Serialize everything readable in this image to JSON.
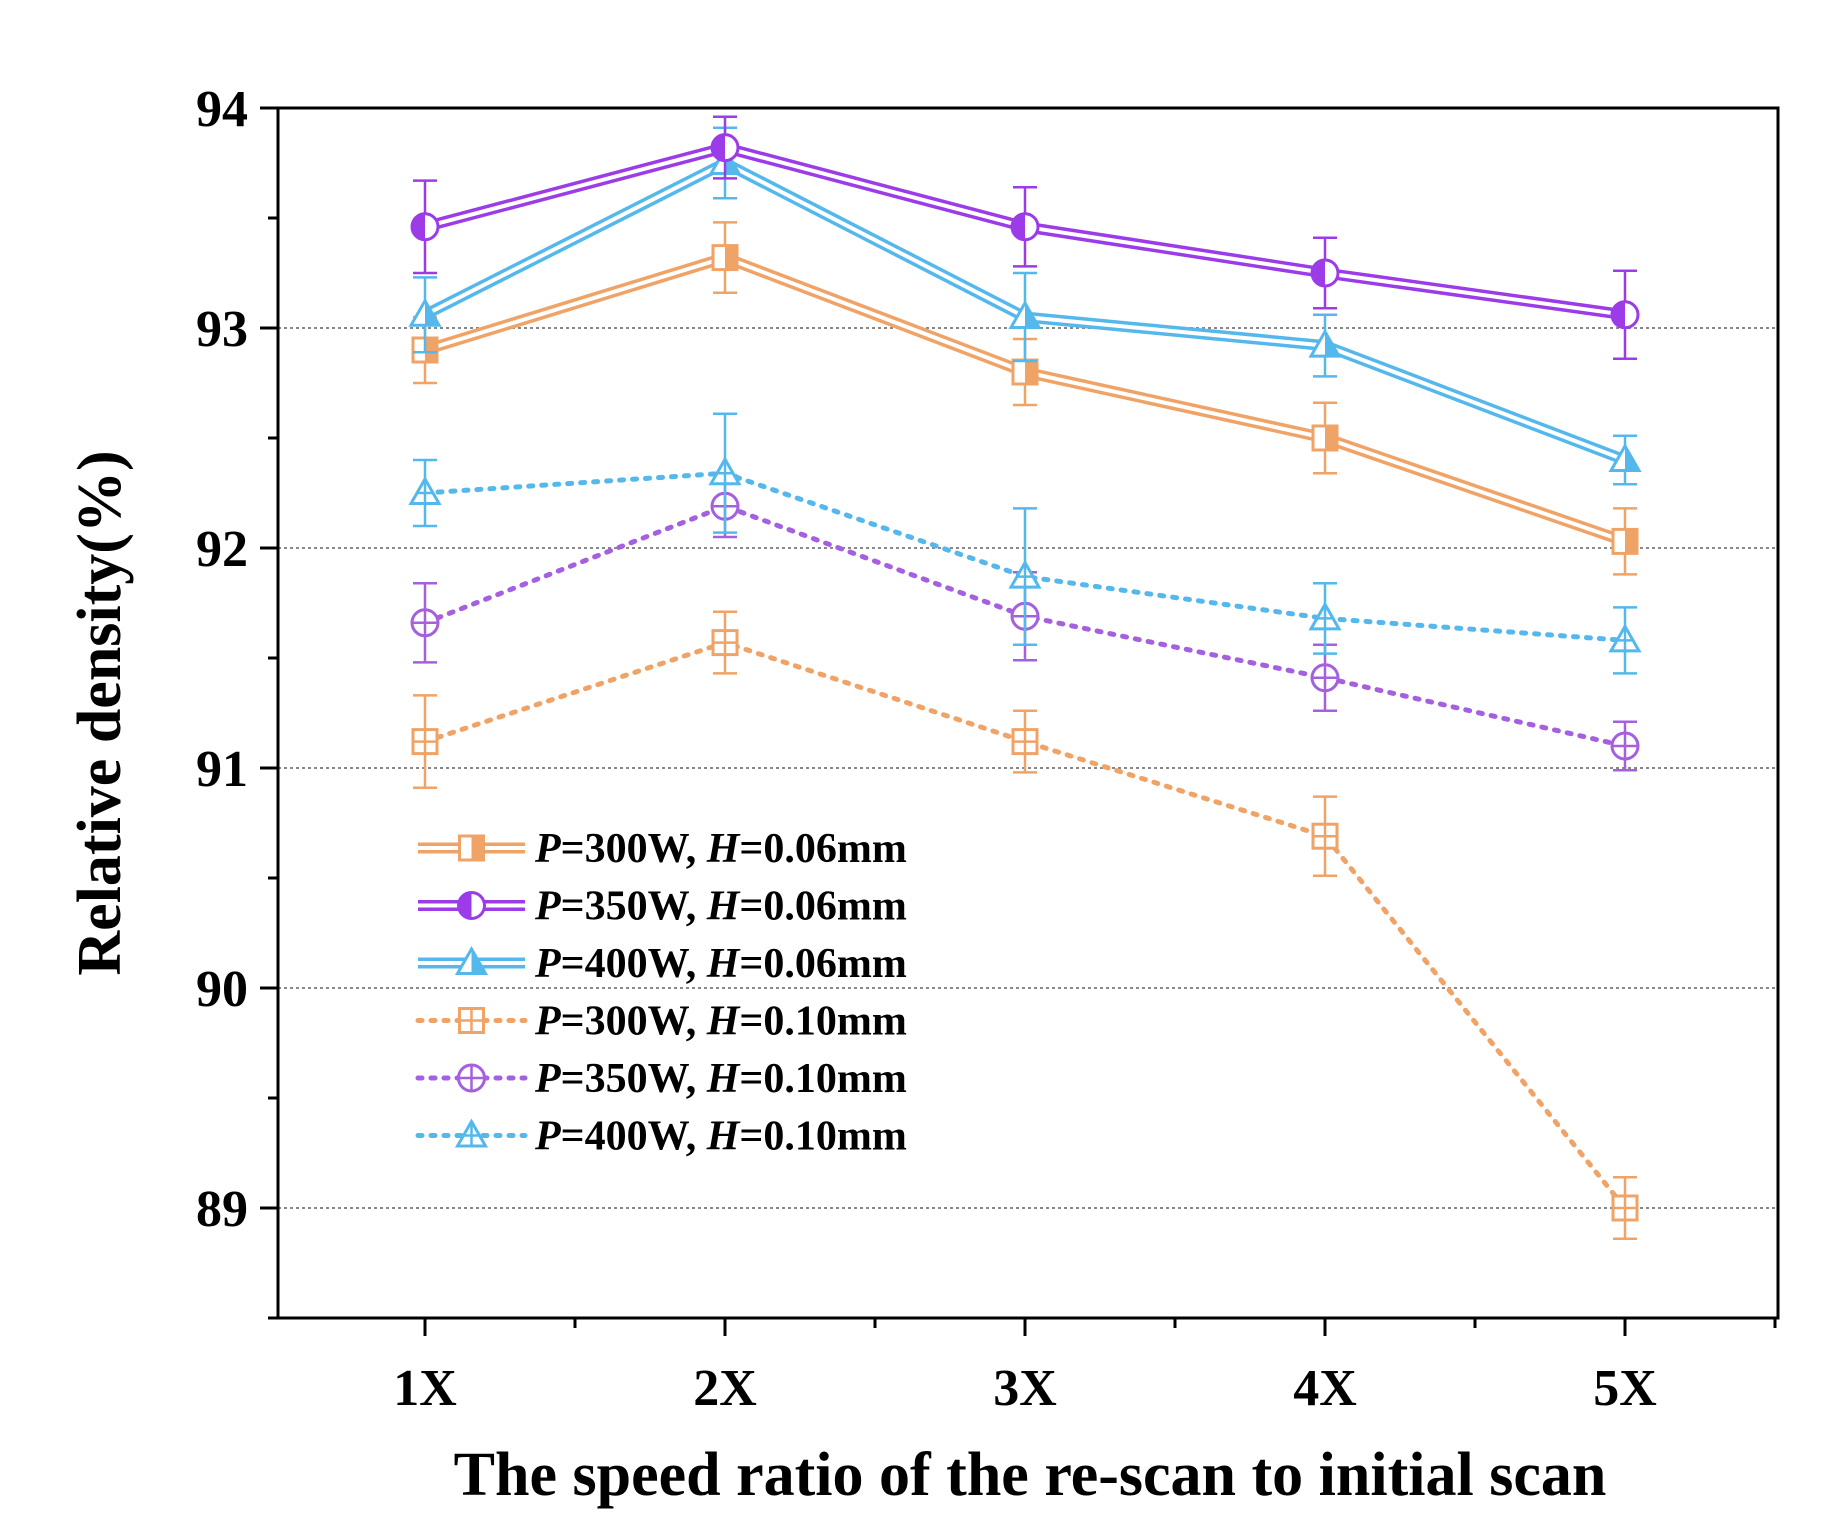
{
  "chart_data": {
    "type": "line",
    "title": "",
    "xlabel": "The speed ratio of the re-scan to initial scan",
    "ylabel": "Relative density(%)",
    "categories": [
      "1X",
      "2X",
      "3X",
      "4X",
      "5X"
    ],
    "ylim": [
      88.5,
      94.0
    ],
    "yticks": [
      "89",
      "90",
      "91",
      "92",
      "93",
      "94"
    ],
    "grid": "horizontal dotted",
    "legend_position": "lower-left",
    "series": [
      {
        "name": "P=300W, H=0.06mm",
        "legend": {
          "p_sym": "P",
          "p_text": "=300W, ",
          "h_sym": "H",
          "h_text": "=0.06mm"
        },
        "color": "#f0a366",
        "style": "double-solid",
        "marker": "square-half",
        "values": [
          92.9,
          93.32,
          92.8,
          92.5,
          92.03
        ],
        "errors": [
          0.15,
          0.16,
          0.15,
          0.16,
          0.15
        ]
      },
      {
        "name": "P=350W, H=0.06mm",
        "legend": {
          "p_sym": "P",
          "p_text": "=350W, ",
          "h_sym": "H",
          "h_text": "=0.06mm"
        },
        "color": "#9b3ce8",
        "style": "double-solid",
        "marker": "circle-half",
        "values": [
          93.46,
          93.82,
          93.46,
          93.25,
          93.06
        ],
        "errors": [
          0.21,
          0.14,
          0.18,
          0.16,
          0.2
        ]
      },
      {
        "name": "P=400W, H=0.06mm",
        "legend": {
          "p_sym": "P",
          "p_text": "=400W, ",
          "h_sym": "H",
          "h_text": "=0.06mm"
        },
        "color": "#55b8ec",
        "style": "double-solid",
        "marker": "triangle-half",
        "values": [
          93.06,
          93.75,
          93.05,
          92.92,
          92.4
        ],
        "errors": [
          0.17,
          0.16,
          0.2,
          0.14,
          0.11
        ]
      },
      {
        "name": "P=300W, H=0.10mm",
        "legend": {
          "p_sym": "P",
          "p_text": "=300W, ",
          "h_sym": "H",
          "h_text": "=0.10mm"
        },
        "color": "#f0a366",
        "style": "dotted",
        "marker": "square-cross",
        "values": [
          91.12,
          91.57,
          91.12,
          90.69,
          89.0
        ],
        "errors": [
          0.21,
          0.14,
          0.14,
          0.18,
          0.14
        ]
      },
      {
        "name": "P=350W, H=0.10mm",
        "legend": {
          "p_sym": "P",
          "p_text": "=350W, ",
          "h_sym": "H",
          "h_text": "=0.10mm"
        },
        "color": "#a560e0",
        "style": "dotted",
        "marker": "circle-cross",
        "values": [
          91.66,
          92.19,
          91.69,
          91.41,
          91.1
        ],
        "errors": [
          0.18,
          0.14,
          0.2,
          0.15,
          0.11
        ]
      },
      {
        "name": "P=400W, H=0.10mm",
        "legend": {
          "p_sym": "P",
          "p_text": "=400W, ",
          "h_sym": "H",
          "h_text": "=0.10mm"
        },
        "color": "#55b8ec",
        "style": "dotted",
        "marker": "triangle-cross",
        "values": [
          92.25,
          92.34,
          91.87,
          91.68,
          91.58
        ],
        "errors": [
          0.15,
          0.27,
          0.31,
          0.16,
          0.15
        ]
      }
    ]
  }
}
